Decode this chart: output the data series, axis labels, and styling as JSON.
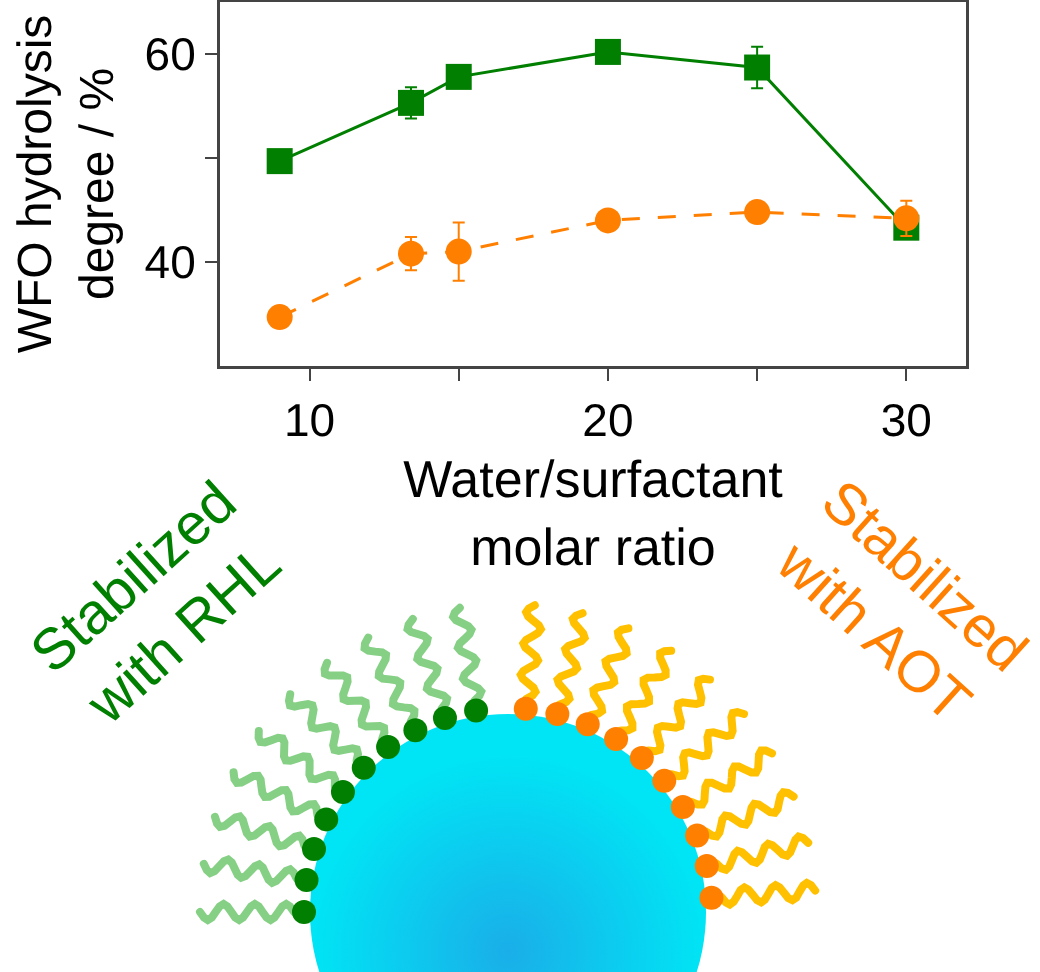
{
  "chart_data": {
    "type": "line",
    "xlabel": "Water/surfactant\nmolar ratio",
    "ylabel": "WFO hydrolysis\ndegree / %",
    "xlim": [
      7,
      32
    ],
    "xticks": [
      10,
      {
        "value": 15,
        "label": null
      },
      20,
      {
        "value": 25,
        "label": null
      },
      30
    ],
    "ylim": [
      30,
      65
    ],
    "yticks": [
      40,
      {
        "value": 50,
        "label": null
      },
      60
    ],
    "grid": false,
    "series": [
      {
        "color": "#007f00",
        "marker": "square",
        "line_style": "solid",
        "x": [
          9,
          13.4,
          15,
          20,
          25,
          30
        ],
        "values": [
          49.7,
          55.3,
          57.8,
          60.2,
          58.7,
          43.3
        ],
        "errors": [
          null,
          1.5,
          null,
          null,
          2,
          1
        ]
      },
      {
        "color": "#ff7f00",
        "marker": "circle",
        "line_style": "dashed",
        "x": [
          9,
          13.4,
          15,
          20,
          25,
          30
        ],
        "values": [
          34.7,
          40.8,
          41.0,
          44.0,
          44.8,
          44.2
        ],
        "errors": [
          null,
          1.6,
          2.8,
          null,
          null,
          1.7
        ]
      }
    ],
    "annotations": [
      "Stabilized\nwith RHL",
      "Stabilized\nwith AOT"
    ]
  }
}
